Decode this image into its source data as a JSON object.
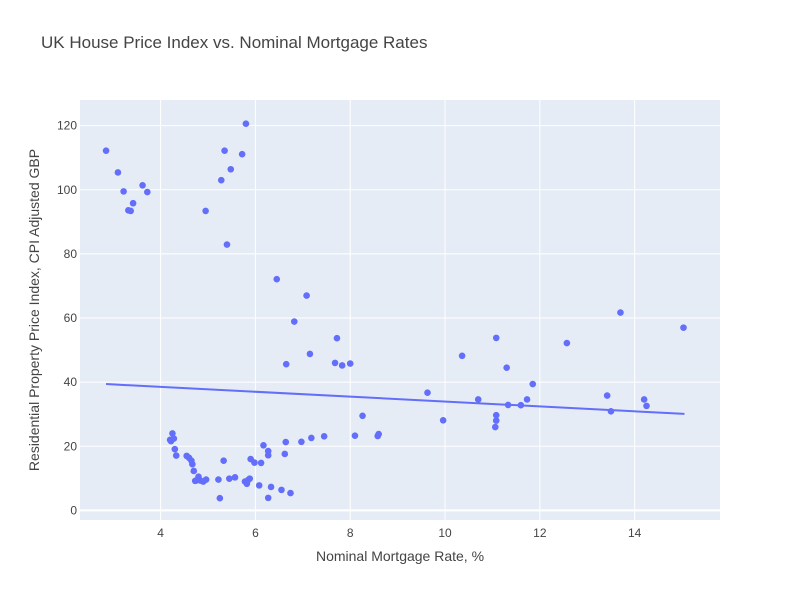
{
  "chart_data": {
    "type": "scatter",
    "title": "UK House Price Index vs. Nominal Mortgage Rates",
    "xlabel": "Nominal Mortgage Rate, %",
    "ylabel": "Residential Property Price Index, CPI Adjusted GBP",
    "xlim": [
      2.3,
      15.8
    ],
    "ylim": [
      -3,
      128
    ],
    "xticks": [
      4,
      6,
      8,
      10,
      12,
      14
    ],
    "xtick_labels": [
      "4",
      "6",
      "8",
      "10",
      "12",
      "14"
    ],
    "yticks": [
      0,
      20,
      40,
      60,
      80,
      100,
      120
    ],
    "ytick_labels": [
      "0",
      "20",
      "40",
      "60",
      "80",
      "100",
      "120"
    ],
    "grid": true,
    "legend": "none",
    "colors": {
      "marker": "#636efa",
      "plot_bg": "#e5ecf6",
      "grid": "#ffffff",
      "text": "#444444"
    },
    "trendline": {
      "x": [
        2.85,
        15.05
      ],
      "y": [
        39.4,
        30.1
      ]
    },
    "points": [
      {
        "x": 2.85,
        "y": 112.2
      },
      {
        "x": 3.1,
        "y": 105.4
      },
      {
        "x": 3.22,
        "y": 99.5
      },
      {
        "x": 3.32,
        "y": 93.6
      },
      {
        "x": 3.37,
        "y": 93.4
      },
      {
        "x": 3.42,
        "y": 95.8
      },
      {
        "x": 3.62,
        "y": 101.4
      },
      {
        "x": 3.72,
        "y": 99.3
      },
      {
        "x": 4.95,
        "y": 93.4
      },
      {
        "x": 5.28,
        "y": 103.0
      },
      {
        "x": 5.35,
        "y": 112.2
      },
      {
        "x": 5.4,
        "y": 82.9
      },
      {
        "x": 5.48,
        "y": 106.4
      },
      {
        "x": 5.72,
        "y": 111.1
      },
      {
        "x": 5.8,
        "y": 120.6
      },
      {
        "x": 6.45,
        "y": 72.1
      },
      {
        "x": 6.65,
        "y": 45.6
      },
      {
        "x": 6.82,
        "y": 58.9
      },
      {
        "x": 7.08,
        "y": 67.0
      },
      {
        "x": 7.15,
        "y": 48.8
      },
      {
        "x": 7.68,
        "y": 46.0
      },
      {
        "x": 7.72,
        "y": 53.7
      },
      {
        "x": 7.83,
        "y": 45.2
      },
      {
        "x": 8.0,
        "y": 45.8
      },
      {
        "x": 4.2,
        "y": 22.0
      },
      {
        "x": 4.22,
        "y": 21.6
      },
      {
        "x": 4.25,
        "y": 24.0
      },
      {
        "x": 4.28,
        "y": 22.4
      },
      {
        "x": 4.3,
        "y": 19.1
      },
      {
        "x": 4.33,
        "y": 17.1
      },
      {
        "x": 4.55,
        "y": 17.0
      },
      {
        "x": 4.6,
        "y": 16.4
      },
      {
        "x": 4.65,
        "y": 15.5
      },
      {
        "x": 4.67,
        "y": 14.4
      },
      {
        "x": 4.7,
        "y": 12.3
      },
      {
        "x": 4.73,
        "y": 9.2
      },
      {
        "x": 4.76,
        "y": 9.4
      },
      {
        "x": 4.8,
        "y": 10.5
      },
      {
        "x": 4.84,
        "y": 9.3
      },
      {
        "x": 4.9,
        "y": 9.0
      },
      {
        "x": 4.96,
        "y": 9.6
      },
      {
        "x": 5.22,
        "y": 9.6
      },
      {
        "x": 5.25,
        "y": 3.8
      },
      {
        "x": 5.33,
        "y": 15.5
      },
      {
        "x": 5.45,
        "y": 9.9
      },
      {
        "x": 5.57,
        "y": 10.3
      },
      {
        "x": 5.78,
        "y": 9.0
      },
      {
        "x": 5.82,
        "y": 8.3
      },
      {
        "x": 5.85,
        "y": 9.5
      },
      {
        "x": 5.88,
        "y": 9.9
      },
      {
        "x": 5.9,
        "y": 16.0
      },
      {
        "x": 5.98,
        "y": 14.9
      },
      {
        "x": 6.08,
        "y": 7.8
      },
      {
        "x": 6.12,
        "y": 14.8
      },
      {
        "x": 6.17,
        "y": 20.3
      },
      {
        "x": 6.27,
        "y": 17.2
      },
      {
        "x": 6.27,
        "y": 18.5
      },
      {
        "x": 6.27,
        "y": 3.9
      },
      {
        "x": 6.33,
        "y": 7.3
      },
      {
        "x": 6.55,
        "y": 6.4
      },
      {
        "x": 6.62,
        "y": 17.6
      },
      {
        "x": 6.64,
        "y": 21.3
      },
      {
        "x": 6.74,
        "y": 5.4
      },
      {
        "x": 6.97,
        "y": 21.4
      },
      {
        "x": 7.18,
        "y": 22.6
      },
      {
        "x": 7.45,
        "y": 23.1
      },
      {
        "x": 8.1,
        "y": 23.3
      },
      {
        "x": 8.26,
        "y": 29.5
      },
      {
        "x": 8.58,
        "y": 23.2
      },
      {
        "x": 8.6,
        "y": 23.8
      },
      {
        "x": 9.63,
        "y": 36.7
      },
      {
        "x": 9.96,
        "y": 28.1
      },
      {
        "x": 10.36,
        "y": 48.2
      },
      {
        "x": 10.7,
        "y": 34.6
      },
      {
        "x": 11.08,
        "y": 53.8
      },
      {
        "x": 11.08,
        "y": 29.7
      },
      {
        "x": 11.08,
        "y": 28.0
      },
      {
        "x": 11.06,
        "y": 26.0
      },
      {
        "x": 11.3,
        "y": 44.5
      },
      {
        "x": 11.33,
        "y": 32.9
      },
      {
        "x": 11.6,
        "y": 32.8
      },
      {
        "x": 11.73,
        "y": 34.6
      },
      {
        "x": 11.85,
        "y": 39.4
      },
      {
        "x": 12.57,
        "y": 52.2
      },
      {
        "x": 13.42,
        "y": 35.8
      },
      {
        "x": 13.5,
        "y": 30.9
      },
      {
        "x": 13.7,
        "y": 61.7
      },
      {
        "x": 14.2,
        "y": 34.6
      },
      {
        "x": 14.25,
        "y": 32.6
      },
      {
        "x": 15.03,
        "y": 57.0
      }
    ]
  }
}
